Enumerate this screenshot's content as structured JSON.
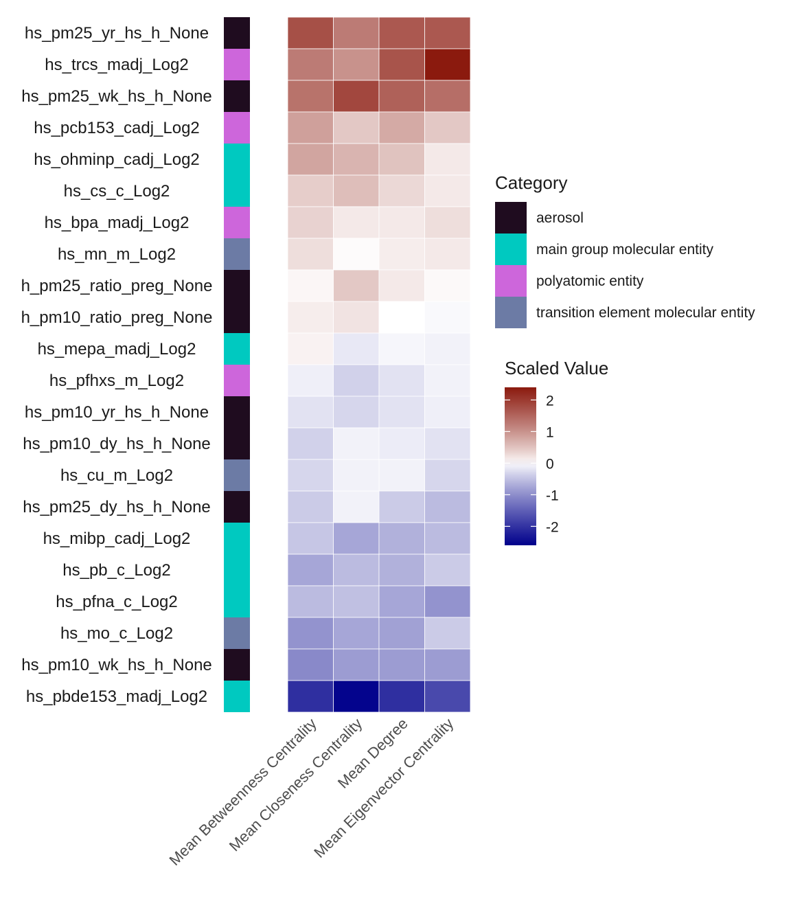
{
  "chart_data": {
    "type": "heatmap",
    "rows": [
      "hs_pm25_yr_hs_h_None",
      "hs_trcs_madj_Log2",
      "hs_pm25_wk_hs_h_None",
      "hs_pcb153_cadj_Log2",
      "hs_ohminp_cadj_Log2",
      "hs_cs_c_Log2",
      "hs_bpa_madj_Log2",
      "hs_mn_m_Log2",
      "h_pm25_ratio_preg_None",
      "h_pm10_ratio_preg_None",
      "hs_mepa_madj_Log2",
      "hs_pfhxs_m_Log2",
      "hs_pm10_yr_hs_h_None",
      "hs_pm10_dy_hs_h_None",
      "hs_cu_m_Log2",
      "hs_pm25_dy_hs_h_None",
      "hs_mibp_cadj_Log2",
      "hs_pb_c_Log2",
      "hs_pfna_c_Log2",
      "hs_mo_c_Log2",
      "hs_pm10_wk_hs_h_None",
      "hs_pbde153_madj_Log2"
    ],
    "columns": [
      "Mean Betweenness Centrality",
      "Mean Closeness Centrality",
      "Mean Degree",
      "Mean Eigenvector Centrality"
    ],
    "values": [
      [
        1.75,
        1.25,
        1.65,
        1.65
      ],
      [
        1.25,
        1.0,
        1.7,
        2.4
      ],
      [
        1.35,
        1.85,
        1.55,
        1.4
      ],
      [
        0.85,
        0.45,
        0.75,
        0.45
      ],
      [
        0.8,
        0.65,
        0.5,
        0.15
      ],
      [
        0.4,
        0.55,
        0.3,
        0.15
      ],
      [
        0.35,
        0.15,
        0.15,
        0.25
      ],
      [
        0.25,
        0.02,
        0.12,
        0.15
      ],
      [
        0.05,
        0.45,
        0.15,
        0.03
      ],
      [
        0.12,
        0.2,
        0.0,
        -0.03
      ],
      [
        0.08,
        -0.15,
        -0.05,
        -0.08
      ],
      [
        -0.1,
        -0.35,
        -0.2,
        -0.08
      ],
      [
        -0.2,
        -0.3,
        -0.2,
        -0.1
      ],
      [
        -0.35,
        -0.08,
        -0.12,
        -0.2
      ],
      [
        -0.3,
        -0.08,
        -0.08,
        -0.3
      ],
      [
        -0.4,
        -0.08,
        -0.4,
        -0.55
      ],
      [
        -0.45,
        -0.75,
        -0.65,
        -0.55
      ],
      [
        -0.75,
        -0.55,
        -0.65,
        -0.4
      ],
      [
        -0.55,
        -0.5,
        -0.75,
        -0.95
      ],
      [
        -0.95,
        -0.75,
        -0.8,
        -0.4
      ],
      [
        -1.05,
        -0.85,
        -0.85,
        -0.85
      ],
      [
        -2.05,
        -2.55,
        -2.05,
        -1.75
      ]
    ],
    "row_categories": [
      "aerosol",
      "polyatomic entity",
      "aerosol",
      "polyatomic entity",
      "main group molecular entity",
      "main group molecular entity",
      "polyatomic entity",
      "transition element molecular entity",
      "aerosol",
      "aerosol",
      "main group molecular entity",
      "polyatomic entity",
      "aerosol",
      "aerosol",
      "transition element molecular entity",
      "aerosol",
      "main group molecular entity",
      "main group molecular entity",
      "main group molecular entity",
      "transition element molecular entity",
      "aerosol",
      "main group molecular entity"
    ],
    "category_legend": {
      "title": "Category",
      "items": [
        {
          "label": "aerosol",
          "color": "#1f0c1f"
        },
        {
          "label": "main group molecular entity",
          "color": "#00c9c0"
        },
        {
          "label": "polyatomic entity",
          "color": "#cd66db"
        },
        {
          "label": "transition element molecular entity",
          "color": "#6c7ba5"
        }
      ]
    },
    "colorbar": {
      "title": "Scaled Value",
      "ticks": [
        "2",
        "1",
        "0",
        "-1",
        "-2"
      ],
      "tick_values": [
        2,
        1,
        0,
        -1,
        -2
      ],
      "range": [
        -2.6,
        2.4
      ],
      "colors": {
        "high": "#8b1a0e",
        "mid": "#ffffff",
        "low": "#00008b"
      }
    }
  }
}
